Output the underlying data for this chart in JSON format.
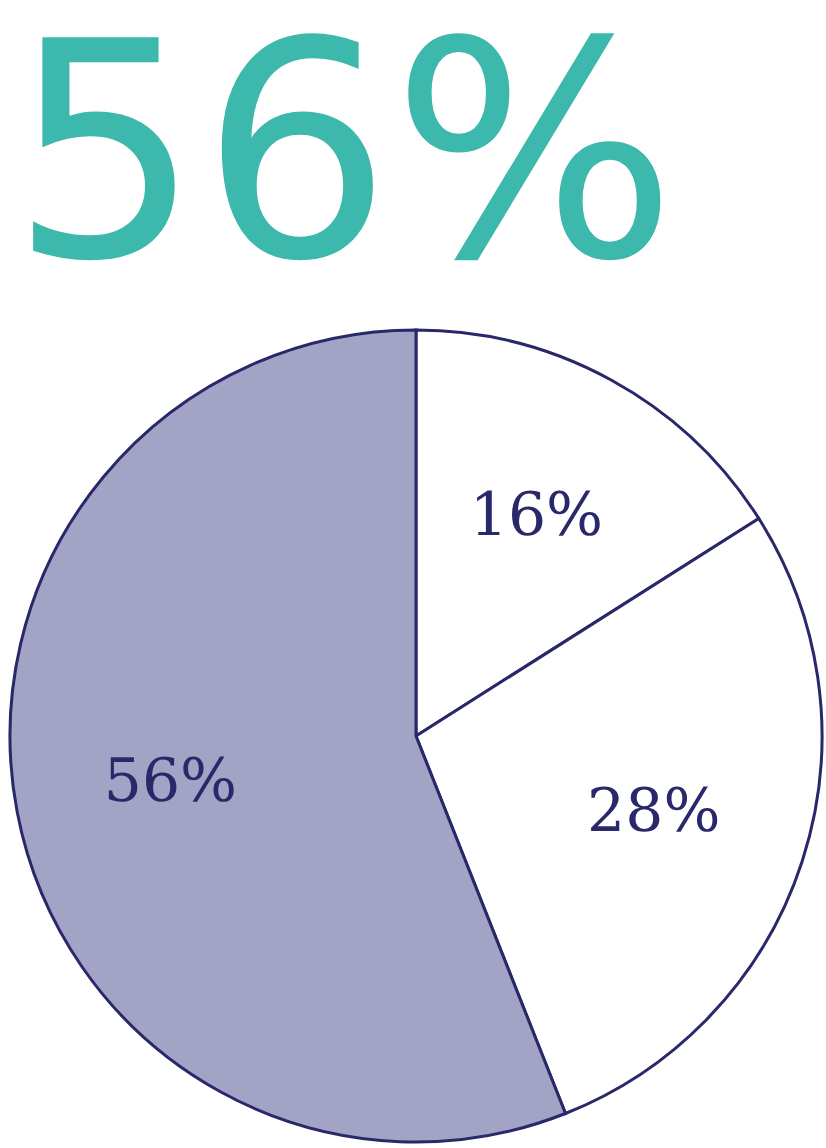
{
  "chart_data": {
    "type": "pie",
    "title": "56%",
    "categories": [
      null,
      null,
      null
    ],
    "values": [
      16,
      28,
      56
    ],
    "colors": [
      "#ffffff",
      "#ffffff",
      "#a3a3c6"
    ],
    "value_labels": [
      "16%",
      "28%",
      "56%"
    ]
  }
}
